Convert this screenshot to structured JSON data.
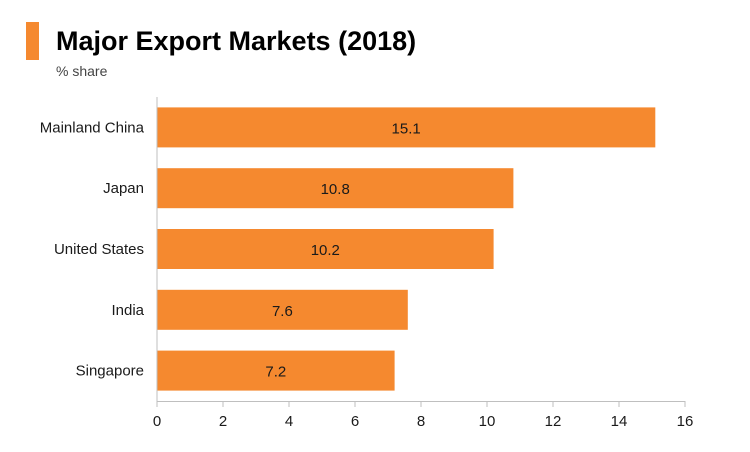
{
  "header": {
    "title": "Major Export Markets (2018)",
    "subtitle": "% share"
  },
  "colors": {
    "accent": "#F5892F",
    "bar": "#F5892F",
    "axis": "#BFBFBF",
    "text": "#1A1A1A"
  },
  "chart_data": {
    "type": "bar",
    "orientation": "horizontal",
    "title": "Major Export Markets (2018)",
    "subtitle": "% share",
    "categories": [
      "Mainland China",
      "Japan",
      "United States",
      "India",
      "Singapore"
    ],
    "values": [
      15.1,
      10.8,
      10.2,
      7.6,
      7.2
    ],
    "data_labels": [
      "15.1",
      "10.8",
      "10.2",
      "7.6",
      "7.2"
    ],
    "xlim": [
      0,
      16
    ],
    "xticks": [
      0,
      2,
      4,
      6,
      8,
      10,
      12,
      14,
      16
    ],
    "xlabel": "",
    "ylabel": "",
    "grid": false,
    "legend": "none"
  }
}
